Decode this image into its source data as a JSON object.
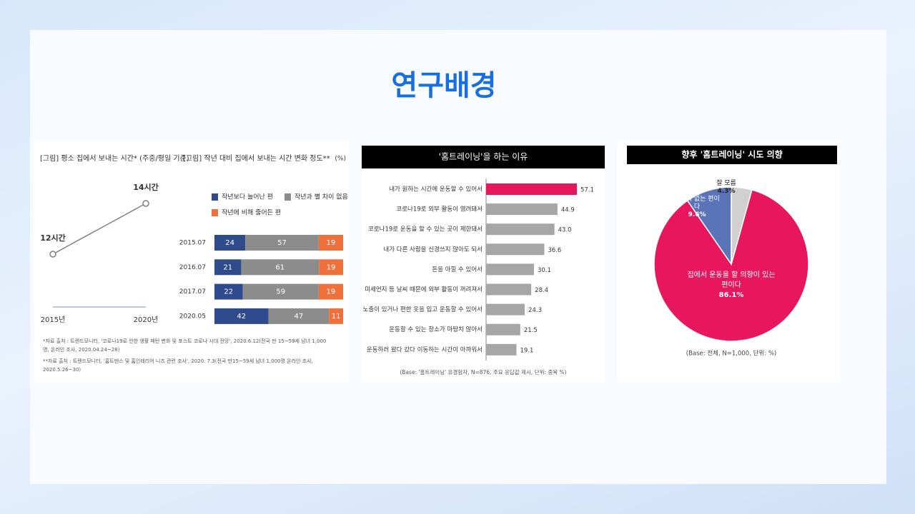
{
  "page": {
    "title": "연구배경",
    "notes": [
      "*자료 출처 : 트렌드모니터, '코로나19로 인한 생활 패턴 변화 및 포스트 코로나 시대 전망', 2020.6.12(전국 만 15~59세 남녀 1,000명, 온라인 조사, 2020.04.24~28)",
      "**자료 출처 : 트렌드모니터, '홈트덴스 및 홈인테리어 니즈 관련 조사', 2020. 7.3(전국 만15~59세 남녀 1,000명 온라인 조사, 2020.5.26~30)"
    ]
  },
  "chart_data": [
    {
      "type": "line",
      "title": "[그림] 평소 집에서 보내는 시간* (주중/평일 기준)",
      "categories": [
        "2015년",
        "2020년"
      ],
      "values": [
        12,
        14
      ],
      "value_labels": [
        "12시간",
        "14시간"
      ],
      "color": "#7f7f7f"
    },
    {
      "type": "bar",
      "stacked": true,
      "orientation": "horizontal",
      "title": "[그림] 작년 대비 집에서 보내는 시간 변화 정도**",
      "unit": "(%)",
      "categories": [
        "2015.07",
        "2016.07",
        "2017.07",
        "2020.05"
      ],
      "series": [
        {
          "name": "작년보다 늘어난 편",
          "color": "#2f4b8c",
          "values": [
            24,
            21,
            22,
            42
          ]
        },
        {
          "name": "작년과 별 차이 없음",
          "color": "#8c8c8c",
          "values": [
            57,
            61,
            59,
            47
          ]
        },
        {
          "name": "작년에 비해 줄어든 편",
          "color": "#f0703c",
          "values": [
            19,
            19,
            19,
            11
          ]
        }
      ]
    },
    {
      "type": "bar",
      "orientation": "horizontal",
      "title": "'홈트레이닝'을 하는 이유",
      "categories": [
        "내가 원하는 시간에 운동할 수 있어서",
        "코로나19로 외부 활동이 염려돼서",
        "코로나19로 운동을 할 수 있는 곳이 제한돼서",
        "내가 다른 사람을 신경쓰지 않아도 되서",
        "돈을 아낄 수 있어서",
        "미세먼지 등 날씨 때문에 외부 활동이 꺼려져서",
        "노출이 있거나 편한 옷을 입고 운동할 수 있어서",
        "운동할 수 있는 장소가 마땅치 않아서",
        "운동하러 왔다 갔다 이동하는 시간이 아까워서"
      ],
      "values": [
        57.1,
        44.9,
        43.0,
        36.6,
        30.1,
        28.4,
        24.3,
        21.5,
        19.1
      ],
      "value_labels": [
        "57.1",
        "44.9",
        "43.0",
        "36.6",
        "30.1",
        "28.4",
        "24.3",
        "21.5",
        "19.1"
      ],
      "colors": [
        "#e8175d",
        "#a6a6a6",
        "#a6a6a6",
        "#a6a6a6",
        "#a6a6a6",
        "#a6a6a6",
        "#a6a6a6",
        "#a6a6a6",
        "#a6a6a6"
      ],
      "note": "(Base: '홈트레이닝' 유경험자, N=876, 주요 응답값 제시, 단위: 중복 %)"
    },
    {
      "type": "pie",
      "title": "향후 '홈트레이닝' 시도 의향",
      "categories": [
        "집에서 운동을 할 의향이 있는 편이다",
        "의향이 없는 편이다",
        "잘 모름"
      ],
      "values": [
        86.1,
        9.6,
        4.3
      ],
      "value_labels": [
        "86.1%",
        "9.6%",
        "4.3%"
      ],
      "colors": [
        "#e8175d",
        "#5b73b8",
        "#d0d0d0"
      ],
      "note": "(Base: 전체, N=1,000, 단위: %)"
    }
  ]
}
